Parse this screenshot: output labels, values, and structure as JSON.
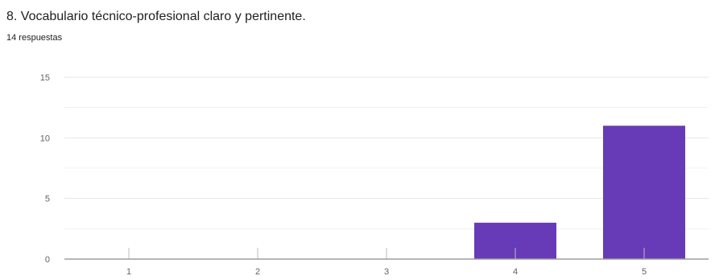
{
  "question_title": "8. Vocabulario técnico-profesional claro y pertinente.",
  "response_count": "14 respuestas",
  "colors": {
    "bar": "#673ab7",
    "grid": "#e6e6e6",
    "axis": "#9e9e9e"
  },
  "chart_data": {
    "type": "bar",
    "title": "8. Vocabulario técnico-profesional claro y pertinente.",
    "subtitle": "14 respuestas",
    "categories": [
      "1",
      "2",
      "3",
      "4",
      "5"
    ],
    "values": [
      0,
      0,
      0,
      3,
      11
    ],
    "ylim": [
      0,
      15
    ],
    "yticks": [
      0,
      5,
      10,
      15
    ],
    "xlabel": "",
    "ylabel": "",
    "grid": true,
    "legend": "none"
  }
}
